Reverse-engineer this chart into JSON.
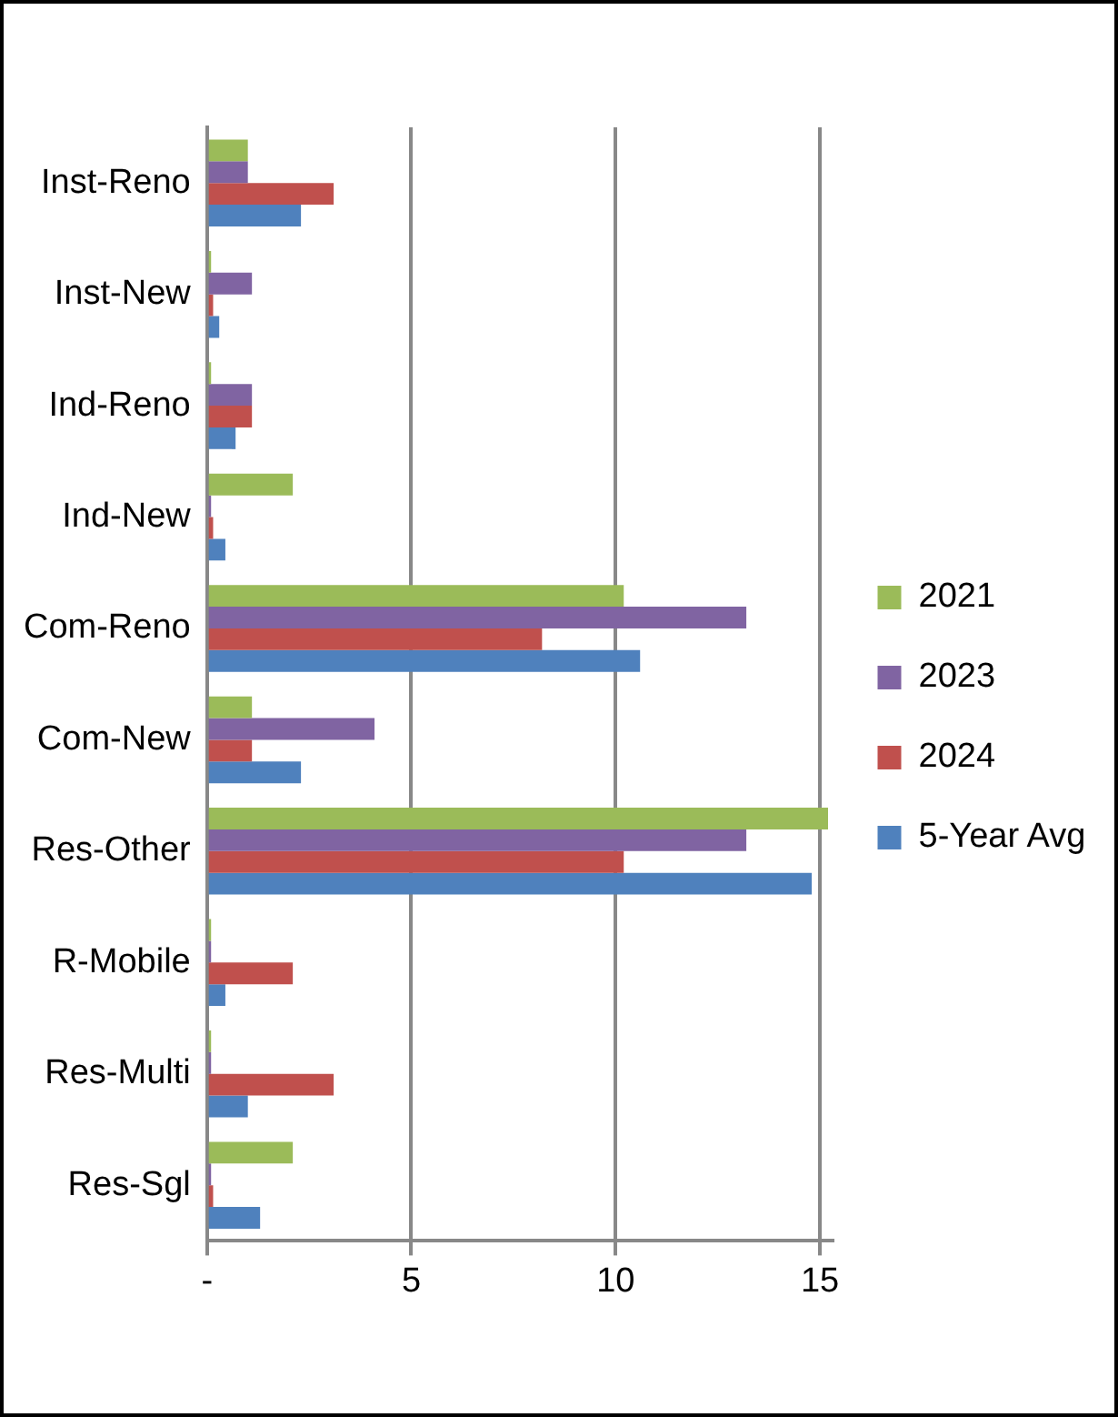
{
  "chart_data": {
    "type": "bar",
    "orientation": "horizontal",
    "categories": [
      "Inst-Reno",
      "Inst-New",
      "Ind-Reno",
      "Ind-New",
      "Com-Reno",
      "Com-New",
      "Res-Other",
      "R-Mobile",
      "Res-Multi",
      "Res-Sgl"
    ],
    "series": [
      {
        "name": "2021",
        "color": "#9bbb59",
        "values": [
          1.0,
          0.1,
          0.1,
          2.1,
          10.2,
          1.1,
          15.2,
          0.1,
          0.1,
          2.1
        ]
      },
      {
        "name": "2023",
        "color": "#8064a2",
        "values": [
          1.0,
          1.1,
          1.1,
          0.1,
          13.2,
          4.1,
          13.2,
          0.1,
          0.1,
          0.1
        ]
      },
      {
        "name": "2024",
        "color": "#c0504d",
        "values": [
          3.1,
          0.15,
          1.1,
          0.15,
          8.2,
          1.1,
          10.2,
          2.1,
          3.1,
          0.15
        ]
      },
      {
        "name": "5-Year Avg",
        "color": "#4f81bd",
        "values": [
          2.3,
          0.3,
          0.7,
          0.45,
          10.6,
          2.3,
          14.8,
          0.45,
          1.0,
          1.3
        ]
      }
    ],
    "xlim": [
      0,
      15.3
    ],
    "xticks": [
      {
        "value": 0,
        "label": "-"
      },
      5,
      10,
      15
    ],
    "grid": "x",
    "legend": "right"
  }
}
